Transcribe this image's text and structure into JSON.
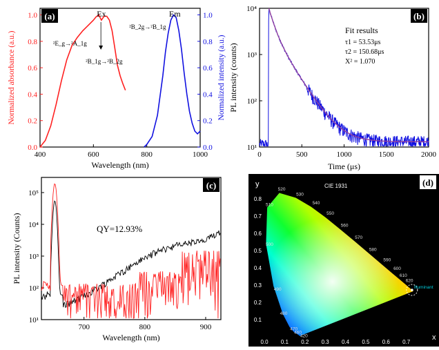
{
  "panel_labels": {
    "a": "(a)",
    "b": "(b)",
    "c": "(c)",
    "d": "(d)"
  },
  "colors": {
    "red": "#ff2020",
    "blue": "#1010e0",
    "black": "#000000",
    "fit": "#9040a0",
    "cyan": "#00c8d8"
  },
  "chart_data": [
    {
      "panel": "a",
      "type": "line",
      "xlabel": "Wavelength (nm)",
      "ylabel_left": "Normalized absorbance (a.u.)",
      "ylabel_right": "Normalized intensity (a.u.)",
      "xlim": [
        400,
        1000
      ],
      "ylim": [
        0,
        1.05
      ],
      "xticks": [
        "400",
        "600",
        "800",
        "1000"
      ],
      "yticks": [
        "0.0",
        "0.2",
        "0.4",
        "0.6",
        "0.8",
        "1.0"
      ],
      "annotations": {
        "ex": "Ex",
        "em": "Em",
        "t1": "²E_g→²A_1g",
        "t2": "²B_1g→²B_2g",
        "t3": "²B_2g→²B_1g"
      },
      "series": [
        {
          "x": [
            400,
            420,
            440,
            460,
            480,
            500,
            520,
            540,
            560,
            580,
            600,
            610,
            620,
            630,
            640,
            650,
            660,
            670,
            680,
            690,
            700,
            710,
            720
          ],
          "y": [
            0.0,
            0.05,
            0.16,
            0.32,
            0.5,
            0.66,
            0.77,
            0.83,
            0.88,
            0.92,
            0.96,
            0.985,
            1.0,
            0.96,
            0.99,
            0.99,
            0.96,
            0.88,
            0.75,
            0.62,
            0.54,
            0.48,
            0.43
          ]
        },
        {
          "x": [
            790,
            800,
            820,
            840,
            860,
            870,
            880,
            890,
            900,
            910,
            920,
            930,
            940,
            950,
            960,
            970,
            980,
            990,
            1000
          ],
          "y": [
            0.0,
            0.02,
            0.08,
            0.24,
            0.54,
            0.72,
            0.86,
            0.96,
            1.0,
            0.98,
            0.88,
            0.74,
            0.56,
            0.4,
            0.27,
            0.18,
            0.12,
            0.1,
            0.12
          ]
        }
      ]
    },
    {
      "panel": "b",
      "type": "line",
      "xlabel": "Time (μs)",
      "ylabel": "PL intensity (counts)",
      "xlim": [
        0,
        2000
      ],
      "ylog": [
        10,
        10000
      ],
      "xticks": [
        "0",
        "500",
        "1000",
        "1500",
        "2000"
      ],
      "yticks": [
        "10¹",
        "10²",
        "10³",
        "10⁴"
      ],
      "fit_title": "Fit results",
      "fit_lines": [
        "τ1 = 53.53μs",
        "τ2 = 150.68μs",
        "X² = 1.070"
      ],
      "tau1": 53.53,
      "tau2": 150.68,
      "chi2": 1.07
    },
    {
      "panel": "c",
      "type": "line",
      "xlabel": "Wavelength (nm)",
      "ylabel": "PL intensity (Counts)",
      "xlim": [
        630,
        925
      ],
      "ylog": [
        10,
        300000
      ],
      "xticks": [
        "700",
        "800",
        "900"
      ],
      "yticks": [
        "10¹",
        "10²",
        "10³",
        "10⁴",
        "10⁵"
      ],
      "annotation": "QY=12.93%"
    },
    {
      "panel": "d",
      "type": "scatter",
      "title": "CIE 1931",
      "xlabel": "x",
      "ylabel": "y",
      "xlim": [
        0,
        0.8
      ],
      "ylim": [
        0,
        0.9
      ],
      "xticks": [
        "0.0",
        "0.1",
        "0.2",
        "0.3",
        "0.4",
        "0.5",
        "0.6",
        "0.7"
      ],
      "yticks": [
        "0.1",
        "0.2",
        "0.3",
        "0.4",
        "0.5",
        "0.6",
        "0.7",
        "0.8"
      ],
      "wavelength_labels": [
        "420",
        "460",
        "470",
        "480",
        "490",
        "500",
        "510",
        "520",
        "530",
        "540",
        "550",
        "560",
        "570",
        "580",
        "590",
        "600",
        "610",
        "620"
      ],
      "point_label": "Illuminant",
      "point": [
        0.728,
        0.272
      ]
    }
  ]
}
